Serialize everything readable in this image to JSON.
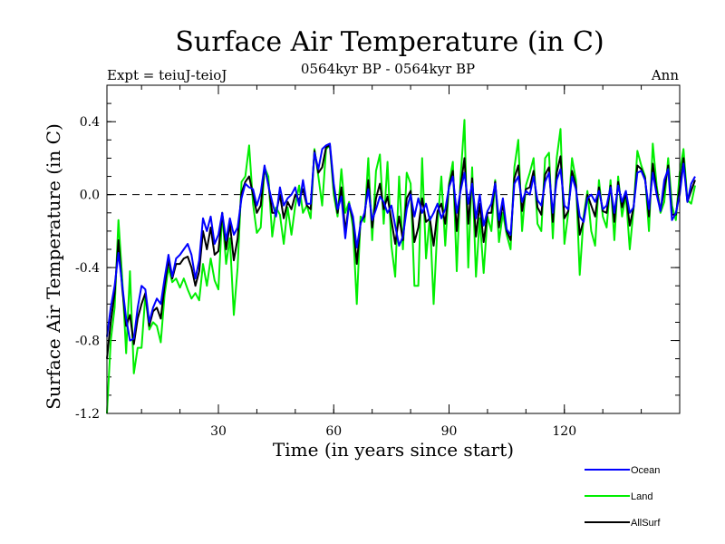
{
  "chart_data": {
    "type": "line",
    "title": "Surface Air Temperature (in C)",
    "subtitle": "0564kyr BP - 0564kyr BP",
    "expt_label": "Expt = teiuJ-teioJ",
    "season_label": "Ann",
    "xlabel": "Time (in years since start)",
    "ylabel": "Surface Air Temperature (in C)",
    "xlim": [
      1,
      150
    ],
    "ylim": [
      -1.2,
      0.6
    ],
    "x_ticks": [
      30,
      60,
      90,
      120
    ],
    "y_ticks": [
      -1.2,
      -0.8,
      -0.4,
      0.0,
      0.4
    ],
    "x_tick_labels": [
      "30",
      "60",
      "90",
      "120"
    ],
    "y_tick_labels": [
      "-1.2",
      "-0.8",
      "-0.4",
      "0.0",
      "0.4"
    ],
    "reference_line": 0.0,
    "legend": {
      "placement": "bottom-right",
      "entries": [
        "Ocean",
        "Land",
        "AllSurf"
      ]
    },
    "x_start": 1,
    "series": [
      {
        "name": "Ocean",
        "color": "#0000ff",
        "values": [
          -0.78,
          -0.62,
          -0.5,
          -0.32,
          -0.5,
          -0.68,
          -0.8,
          -0.79,
          -0.62,
          -0.5,
          -0.52,
          -0.7,
          -0.62,
          -0.57,
          -0.6,
          -0.46,
          -0.33,
          -0.45,
          -0.35,
          -0.33,
          -0.3,
          -0.27,
          -0.33,
          -0.46,
          -0.36,
          -0.13,
          -0.2,
          -0.12,
          -0.27,
          -0.22,
          -0.1,
          -0.25,
          -0.13,
          -0.22,
          -0.18,
          -0.02,
          0.06,
          0.04,
          0.03,
          -0.06,
          0.01,
          0.16,
          0.05,
          -0.04,
          -0.12,
          0.04,
          -0.06,
          -0.02,
          0.0,
          0.04,
          -0.06,
          0.08,
          -0.05,
          -0.05,
          0.23,
          0.14,
          0.25,
          0.27,
          0.28,
          0.06,
          -0.08,
          -0.01,
          -0.24,
          -0.05,
          -0.12,
          -0.29,
          -0.16,
          -0.1,
          0.03,
          -0.14,
          -0.08,
          -0.01,
          -0.04,
          -0.1,
          -0.06,
          -0.17,
          -0.28,
          -0.23,
          -0.08,
          0.0,
          -0.12,
          -0.02,
          -0.1,
          -0.05,
          -0.14,
          -0.1,
          -0.05,
          -0.13,
          -0.08,
          0.04,
          0.1,
          -0.1,
          0.02,
          0.12,
          -0.05,
          0.06,
          -0.13,
          0.0,
          -0.17,
          -0.09,
          -0.05,
          0.06,
          -0.14,
          -0.02,
          -0.19,
          -0.22,
          0.06,
          0.1,
          -0.04,
          0.02,
          0.0,
          0.1,
          -0.03,
          -0.06,
          0.07,
          0.12,
          -0.1,
          0.08,
          0.14,
          -0.06,
          -0.08,
          0.1,
          0.03,
          -0.12,
          -0.15,
          -0.02,
          0.0,
          -0.04,
          0.02,
          -0.08,
          -0.06,
          0.04,
          -0.1,
          0.05,
          -0.04,
          0.02,
          -0.1,
          -0.07,
          0.12,
          0.13,
          0.08,
          -0.08,
          0.12,
          0.0,
          -0.09,
          0.08,
          0.14,
          -0.14,
          -0.1,
          0.0,
          0.17,
          -0.04,
          0.06,
          0.1
        ]
      },
      {
        "name": "Land",
        "color": "#00ee00",
        "values": [
          -1.2,
          -0.8,
          -0.62,
          -0.14,
          -0.47,
          -0.87,
          -0.42,
          -0.98,
          -0.84,
          -0.84,
          -0.55,
          -0.74,
          -0.7,
          -0.72,
          -0.81,
          -0.55,
          -0.4,
          -0.48,
          -0.46,
          -0.51,
          -0.46,
          -0.52,
          -0.57,
          -0.54,
          -0.58,
          -0.38,
          -0.5,
          -0.35,
          -0.47,
          -0.52,
          -0.1,
          -0.38,
          -0.24,
          -0.66,
          -0.4,
          0.07,
          0.1,
          0.27,
          -0.05,
          -0.21,
          -0.18,
          0.15,
          0.1,
          -0.23,
          -0.07,
          -0.11,
          -0.27,
          -0.07,
          -0.22,
          -0.06,
          0.05,
          -0.1,
          -0.06,
          -0.13,
          0.25,
          0.1,
          -0.06,
          0.25,
          0.27,
          0.0,
          -0.12,
          0.14,
          -0.1,
          -0.04,
          -0.18,
          -0.6,
          -0.12,
          -0.15,
          0.2,
          -0.25,
          0.13,
          0.22,
          -0.16,
          0.18,
          -0.28,
          -0.45,
          0.1,
          -0.3,
          0.12,
          0.06,
          -0.5,
          -0.5,
          0.2,
          -0.35,
          -0.12,
          -0.6,
          -0.16,
          0.1,
          -0.28,
          0.06,
          0.18,
          -0.42,
          0.09,
          0.41,
          -0.4,
          0.15,
          -0.45,
          -0.13,
          -0.43,
          -0.12,
          -0.2,
          0.08,
          -0.26,
          -0.1,
          -0.22,
          -0.3,
          0.15,
          0.3,
          -0.2,
          0.05,
          0.12,
          0.2,
          -0.16,
          -0.2,
          0.2,
          0.23,
          -0.24,
          0.2,
          0.36,
          -0.27,
          -0.1,
          0.2,
          0.08,
          -0.44,
          -0.12,
          0.02,
          -0.2,
          -0.28,
          0.08,
          -0.12,
          -0.18,
          0.08,
          -0.25,
          0.1,
          -0.12,
          0.0,
          -0.3,
          -0.08,
          0.24,
          0.16,
          0.1,
          -0.2,
          0.28,
          0.05,
          -0.1,
          -0.04,
          0.2,
          -0.06,
          -0.14,
          0.12,
          0.25,
          -0.03,
          -0.05,
          0.05
        ]
      },
      {
        "name": "AllSurf",
        "color": "#000000",
        "values": [
          -0.9,
          -0.7,
          -0.54,
          -0.25,
          -0.52,
          -0.72,
          -0.66,
          -0.82,
          -0.68,
          -0.6,
          -0.54,
          -0.72,
          -0.64,
          -0.62,
          -0.68,
          -0.5,
          -0.36,
          -0.46,
          -0.38,
          -0.38,
          -0.35,
          -0.34,
          -0.4,
          -0.5,
          -0.42,
          -0.2,
          -0.3,
          -0.18,
          -0.33,
          -0.31,
          -0.1,
          -0.3,
          -0.16,
          -0.36,
          -0.24,
          0.01,
          0.07,
          0.1,
          0.0,
          -0.1,
          -0.06,
          0.15,
          0.06,
          -0.1,
          -0.1,
          0.0,
          -0.13,
          -0.04,
          -0.08,
          0.0,
          -0.03,
          0.03,
          -0.06,
          -0.08,
          0.24,
          0.12,
          0.15,
          0.26,
          0.27,
          0.04,
          -0.1,
          0.04,
          -0.2,
          -0.05,
          -0.14,
          -0.38,
          -0.15,
          -0.12,
          0.08,
          -0.18,
          -0.02,
          0.06,
          -0.08,
          -0.01,
          -0.14,
          -0.27,
          -0.12,
          -0.25,
          -0.02,
          0.02,
          -0.26,
          -0.18,
          -0.02,
          -0.15,
          -0.13,
          -0.28,
          -0.09,
          -0.05,
          -0.16,
          0.05,
          0.13,
          -0.2,
          0.04,
          0.2,
          -0.16,
          0.09,
          -0.23,
          -0.05,
          -0.26,
          -0.1,
          -0.1,
          0.07,
          -0.18,
          -0.05,
          -0.2,
          -0.25,
          0.09,
          0.16,
          -0.09,
          0.03,
          0.04,
          0.13,
          -0.07,
          -0.11,
          0.11,
          0.15,
          -0.15,
          0.12,
          0.21,
          -0.13,
          -0.09,
          0.13,
          0.05,
          -0.22,
          -0.14,
          0.0,
          -0.06,
          -0.12,
          0.04,
          -0.09,
          -0.1,
          0.05,
          -0.15,
          0.07,
          -0.07,
          0.01,
          -0.17,
          -0.07,
          0.16,
          0.14,
          0.09,
          -0.12,
          0.17,
          0.02,
          -0.09,
          0.03,
          0.16,
          -0.11,
          -0.11,
          0.04,
          0.2,
          -0.04,
          0.02,
          0.08
        ]
      }
    ]
  }
}
